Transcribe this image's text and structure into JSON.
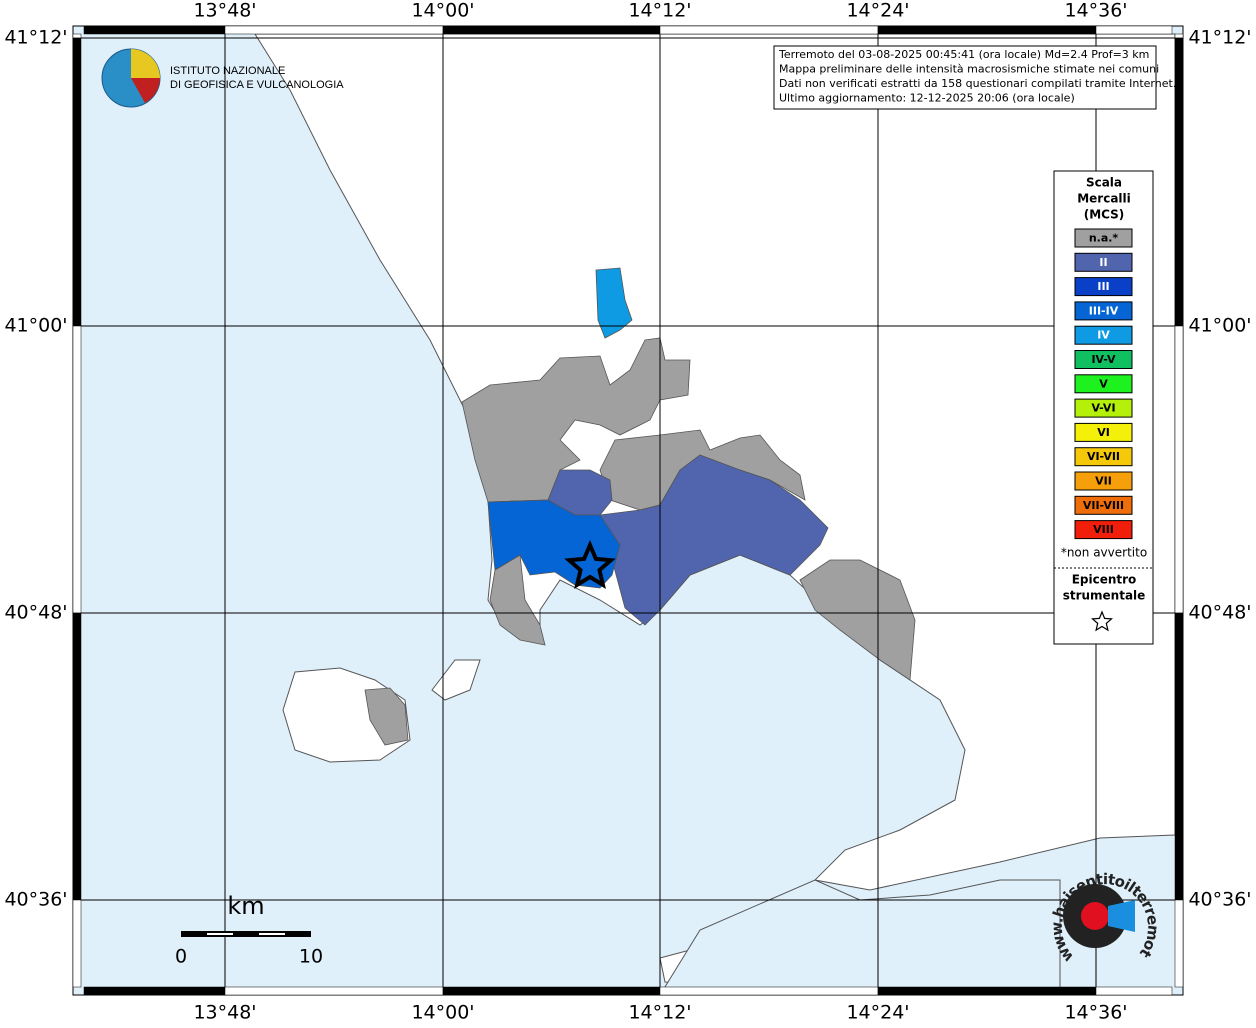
{
  "map": {
    "lon_labels": [
      "13°48'",
      "14°00'",
      "14°12'",
      "14°24'",
      "14°36'"
    ],
    "lat_labels": [
      "41°12'",
      "41°00'",
      "40°48'",
      "40°36'"
    ]
  },
  "logo": {
    "line1": "ISTITUTO NAZIONALE",
    "line2": "DI GEOFISICA E VULCANOLOGIA"
  },
  "info": {
    "lines": [
      "Terremoto del 03-08-2025 00:45:41 (ora locale) Md=2.4 Prof=3 km",
      "Mappa preliminare delle intensità macrosismiche stimate nei comuni",
      "Dati non verificati estratti da 158 questionari compilati tramite Internet.",
      "Ultimo aggiornamento: 12-12-2025 20:06 (ora locale)"
    ]
  },
  "legend": {
    "title": [
      "Scala",
      "Mercalli",
      "(MCS)"
    ],
    "items": [
      {
        "label": "n.a.*",
        "color": "#a0a0a0"
      },
      {
        "label": "II",
        "color": "#5065ad"
      },
      {
        "label": "III",
        "color": "#0a3fc8"
      },
      {
        "label": "III-IV",
        "color": "#0565d4"
      },
      {
        "label": "IV",
        "color": "#0f9be3"
      },
      {
        "label": "IV-V",
        "color": "#10c060"
      },
      {
        "label": "V",
        "color": "#1ef21e"
      },
      {
        "label": "V-VI",
        "color": "#b4f00a"
      },
      {
        "label": "VI",
        "color": "#f5f00a"
      },
      {
        "label": "VI-VII",
        "color": "#f5c80a"
      },
      {
        "label": "VII",
        "color": "#f5a00a"
      },
      {
        "label": "VII-VIII",
        "color": "#f06e0a"
      },
      {
        "label": "VIII",
        "color": "#f01e0a"
      }
    ],
    "note": "*non avvertito",
    "epicenter": [
      "Epicentro",
      "strumentale"
    ]
  },
  "scale_bar": {
    "unit": "km",
    "start": "0",
    "end": "10"
  },
  "badge": {
    "text": "www.haisentitoilterremoto.it"
  }
}
